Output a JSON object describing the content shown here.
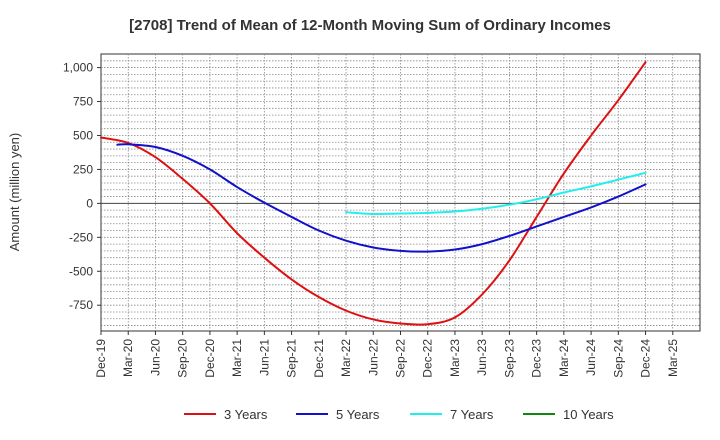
{
  "chart_data": {
    "type": "line",
    "title": "[2708]  Trend of Mean of 12-Month Moving Sum of Ordinary Incomes",
    "xlabel": "",
    "ylabel": "Amount (million yen)",
    "ylim": [
      -940,
      1100
    ],
    "y_ticks": [
      {
        "value": 1000,
        "label": "1,000"
      },
      {
        "value": 750,
        "label": "750"
      },
      {
        "value": 500,
        "label": "500"
      },
      {
        "value": 250,
        "label": "250"
      },
      {
        "value": 0,
        "label": "0"
      },
      {
        "value": -250,
        "label": "-250"
      },
      {
        "value": -500,
        "label": "-500"
      },
      {
        "value": -750,
        "label": "-750"
      }
    ],
    "x_ticks": [
      "Dec-19",
      "Mar-20",
      "Jun-20",
      "Sep-20",
      "Dec-20",
      "Mar-21",
      "Jun-21",
      "Sep-21",
      "Dec-21",
      "Mar-22",
      "Jun-22",
      "Sep-22",
      "Dec-22",
      "Mar-23",
      "Jun-23",
      "Sep-23",
      "Dec-23",
      "Mar-24",
      "Jun-24",
      "Sep-24",
      "Dec-24",
      "Mar-25"
    ],
    "grid": true,
    "legend_position": "bottom",
    "series": [
      {
        "name": "3 Years",
        "color": "#dd1111",
        "values": [
          [
            0,
            485
          ],
          [
            1,
            445
          ],
          [
            2,
            340
          ],
          [
            3,
            180
          ],
          [
            4,
            0
          ],
          [
            5,
            -220
          ],
          [
            6,
            -400
          ],
          [
            7,
            -560
          ],
          [
            8,
            -690
          ],
          [
            9,
            -790
          ],
          [
            10,
            -855
          ],
          [
            11,
            -885
          ],
          [
            12,
            -890
          ],
          [
            13,
            -840
          ],
          [
            14,
            -670
          ],
          [
            15,
            -420
          ],
          [
            16,
            -100
          ],
          [
            17,
            220
          ],
          [
            18,
            500
          ],
          [
            19,
            760
          ],
          [
            20,
            1040
          ]
        ]
      },
      {
        "name": "5 Years",
        "color": "#1111cc",
        "values": [
          [
            0.6,
            432
          ],
          [
            1,
            435
          ],
          [
            2,
            415
          ],
          [
            3,
            350
          ],
          [
            4,
            250
          ],
          [
            5,
            120
          ],
          [
            6,
            5
          ],
          [
            7,
            -100
          ],
          [
            8,
            -200
          ],
          [
            9,
            -275
          ],
          [
            10,
            -325
          ],
          [
            11,
            -350
          ],
          [
            12,
            -355
          ],
          [
            13,
            -340
          ],
          [
            14,
            -300
          ],
          [
            15,
            -240
          ],
          [
            16,
            -170
          ],
          [
            17,
            -100
          ],
          [
            18,
            -30
          ],
          [
            19,
            50
          ],
          [
            20,
            140
          ]
        ]
      },
      {
        "name": "7 Years",
        "color": "#22eeee",
        "values": [
          [
            9,
            -65
          ],
          [
            10,
            -78
          ],
          [
            11,
            -75
          ],
          [
            12,
            -70
          ],
          [
            13,
            -60
          ],
          [
            14,
            -40
          ],
          [
            15,
            -10
          ],
          [
            16,
            30
          ],
          [
            17,
            80
          ],
          [
            18,
            125
          ],
          [
            19,
            175
          ],
          [
            20,
            225
          ]
        ]
      },
      {
        "name": "10 Years",
        "color": "#118811",
        "values": []
      }
    ]
  }
}
